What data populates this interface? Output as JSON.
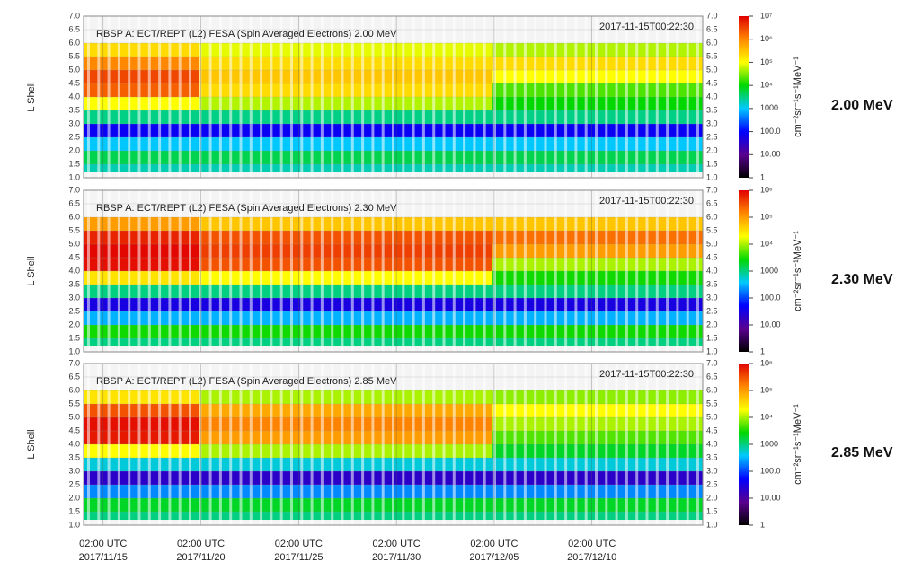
{
  "chart_data": [
    {
      "type": "heatmap",
      "title": "RBSP A: ECT/REPT (L2) FESA (Spin Averaged Electrons) 2.00 MeV",
      "timestamp": "2017-11-15T00:22:30",
      "ylabel": "L Shell",
      "side_label": "2.00 MeV",
      "colorbar_label": "cm⁻²sr⁻¹s⁻¹MeV⁻¹",
      "xlim": [
        "2017-11-14T02:00",
        "2017-12-15T18:00"
      ],
      "ylim": [
        1,
        7
      ],
      "yticks": [
        {
          "value": 1,
          "label": "1.0"
        },
        1.5,
        {
          "value": 2,
          "label": "2.0"
        },
        2.5,
        {
          "value": 3,
          "label": "3.0"
        },
        3.5,
        {
          "value": 4,
          "label": "4.0"
        },
        4.5,
        {
          "value": 5,
          "label": "5.0"
        },
        5.5,
        {
          "value": 6,
          "label": "6.0"
        },
        6.5,
        {
          "value": 7,
          "label": "7.0"
        }
      ],
      "x_edges": [
        "2017-11-14T02:00",
        "2017-11-20T00:00",
        "2017-12-05T00:00",
        "2017-12-15T18:00"
      ],
      "y_edges": [
        1.2,
        1.5,
        2.0,
        2.5,
        3.0,
        3.5,
        4.0,
        4.5,
        5.0,
        5.5,
        6.0
      ],
      "z": [
        [
          2000,
          2000,
          2000
        ],
        [
          5000,
          5000,
          5000
        ],
        [
          1000,
          1000,
          1000
        ],
        [
          80,
          80,
          80
        ],
        [
          3000,
          3000,
          3000
        ],
        [
          100000,
          50000,
          10000
        ],
        [
          2000000,
          200000,
          20000
        ],
        [
          3000000,
          300000,
          100000
        ],
        [
          1000000,
          200000,
          200000
        ],
        [
          200000,
          80000,
          50000
        ]
      ],
      "zlim": [
        1,
        10000000
      ],
      "zlog": true,
      "zticks": [
        1,
        {
          "value": 10,
          "label": "10.00"
        },
        {
          "value": 100,
          "label": "100.0"
        },
        1000,
        {
          "value": 10000,
          "label": "10⁴"
        },
        {
          "value": 100000,
          "label": "10⁵"
        },
        {
          "value": 1000000,
          "label": "10⁶"
        },
        {
          "value": 10000000,
          "label": "10⁷"
        }
      ],
      "colorscale": [
        "#000000",
        "#5a0090",
        "#0000ff",
        "#00c8ff",
        "#00d800",
        "#ffff00",
        "#ff8800",
        "#e00000"
      ]
    },
    {
      "type": "heatmap",
      "title": "RBSP A: ECT/REPT (L2) FESA (Spin Averaged Electrons) 2.30 MeV",
      "timestamp": "2017-11-15T00:22:30",
      "ylabel": "L Shell",
      "side_label": "2.30 MeV",
      "colorbar_label": "cm⁻²sr⁻¹s⁻¹MeV⁻¹",
      "xlim": [
        "2017-11-14T02:00",
        "2017-12-15T18:00"
      ],
      "ylim": [
        1,
        7
      ],
      "yticks": [
        {
          "value": 1,
          "label": "1.0"
        },
        1.5,
        {
          "value": 2,
          "label": "2.0"
        },
        2.5,
        {
          "value": 3,
          "label": "3.0"
        },
        3.5,
        {
          "value": 4,
          "label": "4.0"
        },
        4.5,
        {
          "value": 5,
          "label": "5.0"
        },
        5.5,
        {
          "value": 6,
          "label": "6.0"
        },
        6.5,
        {
          "value": 7,
          "label": "7.0"
        }
      ],
      "x_edges": [
        "2017-11-14T02:00",
        "2017-11-20T00:00",
        "2017-12-05T00:00",
        "2017-12-15T18:00"
      ],
      "y_edges": [
        1.2,
        1.5,
        2.0,
        2.5,
        3.0,
        3.5,
        4.0,
        4.5,
        5.0,
        5.5,
        6.0
      ],
      "z": [
        [
          1000,
          1000,
          1000
        ],
        [
          3000,
          3000,
          3000
        ],
        [
          300,
          300,
          300
        ],
        [
          30,
          30,
          30
        ],
        [
          1000,
          1000,
          1000
        ],
        [
          30000,
          20000,
          3000
        ],
        [
          800000,
          300000,
          10000
        ],
        [
          900000,
          400000,
          100000
        ],
        [
          600000,
          300000,
          200000
        ],
        [
          100000,
          50000,
          50000
        ]
      ],
      "zlim": [
        1,
        1000000
      ],
      "zlog": true,
      "zticks": [
        1,
        {
          "value": 10,
          "label": "10.00"
        },
        {
          "value": 100,
          "label": "100.0"
        },
        1000,
        {
          "value": 10000,
          "label": "10⁴"
        },
        {
          "value": 100000,
          "label": "10⁵"
        },
        {
          "value": 1000000,
          "label": "10⁶"
        }
      ],
      "colorscale": [
        "#000000",
        "#5a0090",
        "#0000ff",
        "#00c8ff",
        "#00d800",
        "#ffff00",
        "#ff8800",
        "#e00000"
      ]
    },
    {
      "type": "heatmap",
      "title": "RBSP A: ECT/REPT (L2) FESA (Spin Averaged Electrons) 2.85 MeV",
      "timestamp": "2017-11-15T00:22:30",
      "ylabel": "L Shell",
      "side_label": "2.85 MeV",
      "colorbar_label": "cm⁻²sr⁻¹s⁻¹MeV⁻¹",
      "xlim": [
        "2017-11-14T02:00",
        "2017-12-15T18:00"
      ],
      "ylim": [
        1,
        7
      ],
      "yticks": [
        {
          "value": 1,
          "label": "1.0"
        },
        1.5,
        {
          "value": 2,
          "label": "2.0"
        },
        2.5,
        {
          "value": 3,
          "label": "3.0"
        },
        3.5,
        {
          "value": 4,
          "label": "4.0"
        },
        4.5,
        {
          "value": 5,
          "label": "5.0"
        },
        5.5,
        {
          "value": 6,
          "label": "6.0"
        },
        6.5,
        {
          "value": 7,
          "label": "7.0"
        }
      ],
      "x_edges": [
        "2017-11-14T02:00",
        "2017-11-20T00:00",
        "2017-12-05T00:00",
        "2017-12-15T18:00"
      ],
      "y_edges": [
        1.2,
        1.5,
        2.0,
        2.5,
        3.0,
        3.5,
        4.0,
        4.5,
        5.0,
        5.5,
        6.0
      ],
      "z": [
        [
          1000,
          1000,
          1000
        ],
        [
          2000,
          2000,
          2000
        ],
        [
          200,
          200,
          200
        ],
        [
          20,
          20,
          20
        ],
        [
          500,
          500,
          500
        ],
        [
          20000,
          10000,
          2000
        ],
        [
          700000,
          100000,
          5000
        ],
        [
          800000,
          150000,
          10000
        ],
        [
          300000,
          80000,
          20000
        ],
        [
          30000,
          10000,
          8000
        ]
      ],
      "zlim": [
        1,
        1000000
      ],
      "zlog": true,
      "zticks": [
        1,
        {
          "value": 10,
          "label": "10.00"
        },
        {
          "value": 100,
          "label": "100.0"
        },
        1000,
        {
          "value": 10000,
          "label": "10⁴"
        },
        {
          "value": 100000,
          "label": "10⁵"
        },
        {
          "value": 1000000,
          "label": "10⁶"
        }
      ],
      "colorscale": [
        "#000000",
        "#5a0090",
        "#0000ff",
        "#00c8ff",
        "#00d800",
        "#ffff00",
        "#ff8800",
        "#e00000"
      ],
      "xticks": [
        {
          "value": "2017-11-15T02:00",
          "label": [
            "02:00 UTC",
            "2017/11/15"
          ]
        },
        {
          "value": "2017-11-20T02:00",
          "label": [
            "02:00 UTC",
            "2017/11/20"
          ]
        },
        {
          "value": "2017-11-25T02:00",
          "label": [
            "02:00 UTC",
            "2017/11/25"
          ]
        },
        {
          "value": "2017-11-30T02:00",
          "label": [
            "02:00 UTC",
            "2017/11/30"
          ]
        },
        {
          "value": "2017-12-05T02:00",
          "label": [
            "02:00 UTC",
            "2017/12/05"
          ]
        },
        {
          "value": "2017-12-10T02:00",
          "label": [
            "02:00 UTC",
            "2017/12/10"
          ]
        }
      ]
    }
  ]
}
